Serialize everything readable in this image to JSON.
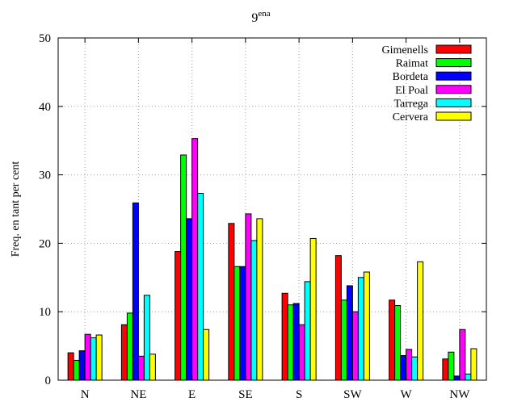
{
  "chart_data": {
    "type": "bar",
    "title_main": "9",
    "title_sup": "ena",
    "xlabel": "",
    "ylabel": "Freq. en tant per cent",
    "ylim": [
      0,
      50
    ],
    "yticks": [
      "0",
      "10",
      "20",
      "30",
      "40",
      "50"
    ],
    "grid": true,
    "legend_position": "top-right",
    "categories": [
      "N",
      "NE",
      "E",
      "SE",
      "S",
      "SW",
      "W",
      "NW"
    ],
    "series": [
      {
        "name": "Gimenells",
        "color": "#ff0000",
        "values": [
          4.0,
          8.1,
          18.8,
          22.9,
          12.7,
          18.2,
          11.7,
          3.1
        ]
      },
      {
        "name": "Raimat",
        "color": "#00ff00",
        "values": [
          2.9,
          9.8,
          32.9,
          16.6,
          11.0,
          11.7,
          10.9,
          4.1
        ]
      },
      {
        "name": "Bordeta",
        "color": "#0000ff",
        "values": [
          4.3,
          25.9,
          23.6,
          16.6,
          11.2,
          13.8,
          3.6,
          0.6
        ]
      },
      {
        "name": "El Poal",
        "color": "#ff00ff",
        "values": [
          6.7,
          3.5,
          35.3,
          24.3,
          8.1,
          10.0,
          4.5,
          7.4
        ]
      },
      {
        "name": "Tarrega",
        "color": "#00ffff",
        "values": [
          6.2,
          12.4,
          27.3,
          20.4,
          14.4,
          15.0,
          3.4,
          0.9
        ]
      },
      {
        "name": "Cervera",
        "color": "#ffff00",
        "values": [
          6.6,
          3.8,
          7.4,
          23.6,
          20.7,
          15.8,
          17.3,
          4.6
        ]
      }
    ]
  }
}
